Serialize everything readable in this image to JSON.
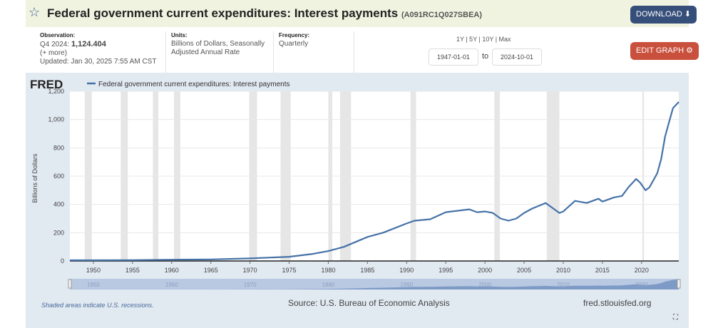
{
  "header": {
    "title": "Federal government current expenditures: Interest payments",
    "series_id": "(A091RC1Q027SBEA)",
    "download_label": "DOWNLOAD"
  },
  "info": {
    "observation_label": "Observation:",
    "observation_period": "Q4 2024:",
    "observation_value": "1,124.404",
    "more": "(+ more)",
    "updated": "Updated: Jan 30, 2025 7:55 AM CST",
    "units_label": "Units:",
    "units": "Billions of Dollars, Seasonally Adjusted Annual Rate",
    "frequency_label": "Frequency:",
    "frequency": "Quarterly"
  },
  "range": {
    "links": "1Y | 5Y | 10Y | Max",
    "start": "1947-01-01",
    "to": "to",
    "end": "2024-10-01"
  },
  "edit_label": "EDIT GRAPH",
  "logo": "FRED",
  "footer": {
    "note": "Shaded areas indicate U.S. recessions.",
    "source": "Source: U.S. Bureau of Economic Analysis",
    "site": "fred.stlouisfed.org"
  },
  "colors": {
    "line": "#4572a7",
    "recession": "#e6e6e6",
    "panel": "#e1e9f1"
  },
  "chart_data": {
    "type": "line",
    "legend": "Federal government current expenditures: Interest payments",
    "legend_placement": "top-left",
    "ylabel": "Billions of Dollars",
    "xlim": [
      1947,
      2024.75
    ],
    "ylim": [
      0,
      1200
    ],
    "grid": true,
    "yticks": [
      0,
      200,
      400,
      600,
      800,
      "1,000",
      "1,200"
    ],
    "xticks": [
      1950,
      1955,
      1960,
      1965,
      1970,
      1975,
      1980,
      1985,
      1990,
      1995,
      2000,
      2005,
      2010,
      2015,
      2020
    ],
    "navigator_ticks": [
      1950,
      1960,
      1970,
      1980,
      1990,
      2000,
      2010,
      2020
    ],
    "recessions": [
      [
        1948.9,
        1949.8
      ],
      [
        1953.5,
        1954.4
      ],
      [
        1957.6,
        1958.3
      ],
      [
        1960.3,
        1961.1
      ],
      [
        1969.9,
        1970.9
      ],
      [
        1973.9,
        1975.2
      ],
      [
        1980.0,
        1980.5
      ],
      [
        1981.5,
        1982.9
      ],
      [
        1990.5,
        1991.2
      ],
      [
        2001.2,
        2001.9
      ],
      [
        2007.9,
        2009.5
      ],
      [
        2020.1,
        2020.3
      ]
    ],
    "x": [
      1947,
      1950,
      1955,
      1960,
      1965,
      1970,
      1975,
      1978,
      1980,
      1982,
      1985,
      1987,
      1990,
      1991,
      1993,
      1995,
      1998,
      1999,
      2000,
      2001,
      2002,
      2003,
      2004,
      2005,
      2006,
      2007.75,
      2008.5,
      2009.5,
      2010,
      2011.5,
      2013,
      2014.5,
      2015,
      2016.5,
      2017.5,
      2018.3,
      2019.3,
      2019.8,
      2020.5,
      2021,
      2022,
      2022.5,
      2023,
      2023.5,
      2024,
      2024.75
    ],
    "y": [
      5,
      5,
      6,
      9,
      11,
      18,
      30,
      50,
      70,
      100,
      170,
      200,
      265,
      285,
      295,
      345,
      365,
      345,
      350,
      340,
      300,
      285,
      300,
      340,
      370,
      410,
      380,
      340,
      350,
      425,
      410,
      440,
      420,
      450,
      460,
      520,
      580,
      555,
      500,
      520,
      620,
      720,
      880,
      980,
      1080,
      1124.404
    ]
  }
}
